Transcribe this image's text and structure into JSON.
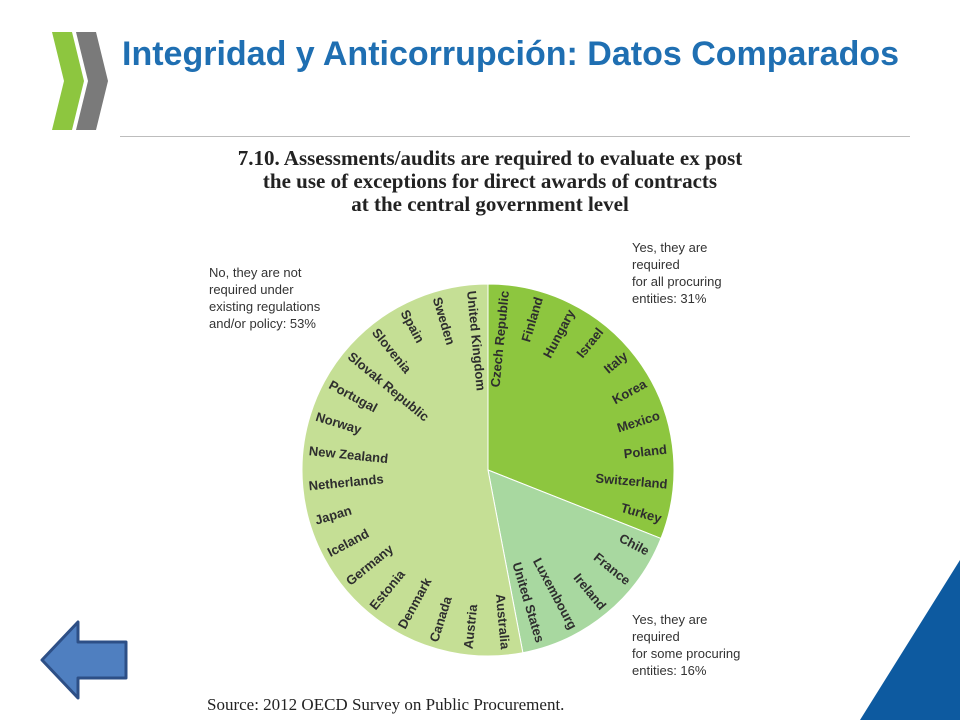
{
  "slide": {
    "title": "Integridad y Anticorrupción: Datos Comparados",
    "accent_color": "#1f6fb2",
    "corner_color": "#0d5aa0"
  },
  "chart_data": {
    "type": "pie",
    "title_lines": [
      "7.10.  Assessments/audits are required to evaluate ex post",
      "the use of exceptions for direct awards of contracts",
      "at the central government level"
    ],
    "slices": [
      {
        "category": "yes_all",
        "label": "Yes, they are\nrequired\nfor all procuring\nentities: 31%",
        "percent": 31,
        "color": "#8dc63f",
        "countries": [
          "Czech Republic",
          "Finland",
          "Hungary",
          "Israel",
          "Italy",
          "Korea",
          "Mexico",
          "Poland",
          "Switzerland",
          "Turkey"
        ]
      },
      {
        "category": "yes_some",
        "label": "Yes, they are\nrequired\nfor some procuring\nentities: 16%",
        "percent": 16,
        "color": "#a8d8a0",
        "countries": [
          "Chile",
          "France",
          "Ireland",
          "Luxembourg",
          "United States"
        ]
      },
      {
        "category": "no",
        "label": "No, they are not\nrequired under\nexisting regulations\nand/or policy: 53%",
        "percent": 53,
        "color": "#c5df95",
        "countries": [
          "Australia",
          "Austria",
          "Canada",
          "Denmark",
          "Estonia",
          "Germany",
          "Iceland",
          "Japan",
          "Netherlands",
          "New Zealand",
          "Norway",
          "Portugal",
          "Slovak Republic",
          "Slovenia",
          "Spain",
          "Sweden",
          "United Kingdom"
        ]
      }
    ],
    "source": "Source:  2012 OECD Survey on Public Procurement."
  },
  "nav": {
    "back_icon": "left-arrow-icon",
    "back_color": "#4f7fc0"
  }
}
